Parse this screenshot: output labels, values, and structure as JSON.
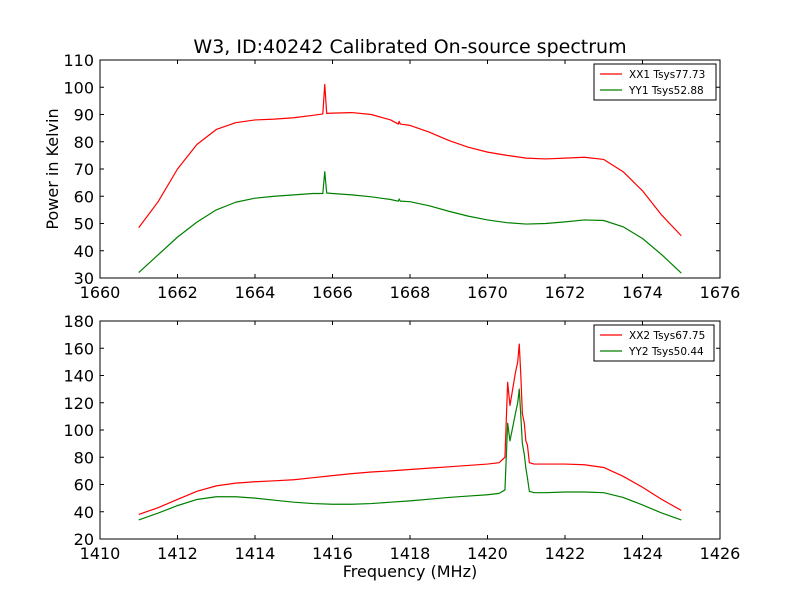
{
  "title": "W3, ID:40242 Calibrated On-source spectrum",
  "chart_data": [
    {
      "type": "line",
      "xlabel": "",
      "ylabel": "Power in Kelvin",
      "xlim": [
        1660,
        1676
      ],
      "ylim": [
        30,
        110
      ],
      "xticks": [
        1660,
        1662,
        1664,
        1666,
        1668,
        1670,
        1672,
        1674,
        1676
      ],
      "yticks": [
        30,
        40,
        50,
        60,
        70,
        80,
        90,
        100,
        110
      ],
      "legend_position": "top-right",
      "series": [
        {
          "name": "XX1 Tsys77.73",
          "color": "#ff0000",
          "points": [
            [
              1661.0,
              48.5
            ],
            [
              1661.5,
              58
            ],
            [
              1662.0,
              70
            ],
            [
              1662.5,
              79
            ],
            [
              1663.0,
              84.5
            ],
            [
              1663.5,
              87
            ],
            [
              1664.0,
              88
            ],
            [
              1664.5,
              88.3
            ],
            [
              1665.0,
              88.8
            ],
            [
              1665.5,
              89.7
            ],
            [
              1665.75,
              90.2
            ],
            [
              1665.8,
              101
            ],
            [
              1665.85,
              90.4
            ],
            [
              1666.0,
              90.5
            ],
            [
              1666.5,
              90.7
            ],
            [
              1667.0,
              90
            ],
            [
              1667.5,
              88
            ],
            [
              1667.7,
              86.5
            ],
            [
              1667.72,
              87.5
            ],
            [
              1667.75,
              86.5
            ],
            [
              1668.0,
              86
            ],
            [
              1668.5,
              83.5
            ],
            [
              1669.0,
              80.5
            ],
            [
              1669.5,
              78
            ],
            [
              1670.0,
              76.2
            ],
            [
              1670.5,
              75
            ],
            [
              1671.0,
              74
            ],
            [
              1671.5,
              73.7
            ],
            [
              1672.0,
              74
            ],
            [
              1672.5,
              74.3
            ],
            [
              1673.0,
              73.5
            ],
            [
              1673.5,
              69
            ],
            [
              1674.0,
              62
            ],
            [
              1674.5,
              53
            ],
            [
              1675.0,
              45.5
            ]
          ]
        },
        {
          "name": "YY1 Tsys52.88",
          "color": "#008000",
          "points": [
            [
              1661.0,
              32
            ],
            [
              1661.5,
              38.5
            ],
            [
              1662.0,
              45
            ],
            [
              1662.5,
              50.5
            ],
            [
              1663.0,
              55
            ],
            [
              1663.5,
              57.8
            ],
            [
              1664.0,
              59.3
            ],
            [
              1664.5,
              60
            ],
            [
              1665.0,
              60.5
            ],
            [
              1665.5,
              61
            ],
            [
              1665.75,
              61
            ],
            [
              1665.8,
              69
            ],
            [
              1665.85,
              61.2
            ],
            [
              1666.0,
              61
            ],
            [
              1666.5,
              60.5
            ],
            [
              1667.0,
              59.8
            ],
            [
              1667.5,
              58.8
            ],
            [
              1667.7,
              58.2
            ],
            [
              1667.72,
              59
            ],
            [
              1667.75,
              58.2
            ],
            [
              1668.0,
              58
            ],
            [
              1668.5,
              56.5
            ],
            [
              1669.0,
              54.5
            ],
            [
              1669.5,
              52.7
            ],
            [
              1670.0,
              51.3
            ],
            [
              1670.5,
              50.3
            ],
            [
              1671.0,
              49.8
            ],
            [
              1671.5,
              50
            ],
            [
              1672.0,
              50.6
            ],
            [
              1672.5,
              51.3
            ],
            [
              1673.0,
              51.1
            ],
            [
              1673.5,
              48.8
            ],
            [
              1674.0,
              44.5
            ],
            [
              1674.5,
              38.5
            ],
            [
              1675.0,
              31.8
            ]
          ]
        }
      ]
    },
    {
      "type": "line",
      "xlabel": "Frequency (MHz)",
      "ylabel": "",
      "xlim": [
        1410,
        1426
      ],
      "ylim": [
        20,
        180
      ],
      "xticks": [
        1410,
        1412,
        1414,
        1416,
        1418,
        1420,
        1422,
        1424,
        1426
      ],
      "yticks": [
        20,
        40,
        60,
        80,
        100,
        120,
        140,
        160,
        180
      ],
      "legend_position": "top-right",
      "series": [
        {
          "name": "XX2 Tsys67.75",
          "color": "#ff0000",
          "points": [
            [
              1411.0,
              38
            ],
            [
              1411.5,
              43
            ],
            [
              1412.0,
              49
            ],
            [
              1412.5,
              55
            ],
            [
              1413.0,
              59
            ],
            [
              1413.5,
              61
            ],
            [
              1414.0,
              62
            ],
            [
              1414.5,
              62.7
            ],
            [
              1415.0,
              63.5
            ],
            [
              1415.5,
              65
            ],
            [
              1416.0,
              66.5
            ],
            [
              1416.5,
              68
            ],
            [
              1417.0,
              69.2
            ],
            [
              1417.5,
              70
            ],
            [
              1418.0,
              71
            ],
            [
              1418.5,
              72
            ],
            [
              1419.0,
              73
            ],
            [
              1419.5,
              74
            ],
            [
              1420.0,
              75
            ],
            [
              1420.3,
              76
            ],
            [
              1420.45,
              80
            ],
            [
              1420.52,
              135
            ],
            [
              1420.58,
              118
            ],
            [
              1420.65,
              130
            ],
            [
              1420.72,
              142
            ],
            [
              1420.78,
              150
            ],
            [
              1420.82,
              163
            ],
            [
              1420.86,
              140
            ],
            [
              1420.9,
              112
            ],
            [
              1420.95,
              105
            ],
            [
              1420.99,
              92
            ],
            [
              1421.03,
              89
            ],
            [
              1421.08,
              76
            ],
            [
              1421.2,
              75
            ],
            [
              1421.5,
              75
            ],
            [
              1422.0,
              75
            ],
            [
              1422.5,
              74.5
            ],
            [
              1423.0,
              72.5
            ],
            [
              1423.5,
              66
            ],
            [
              1424.0,
              58
            ],
            [
              1424.5,
              49
            ],
            [
              1425.0,
              41
            ]
          ]
        },
        {
          "name": "YY2 Tsys50.44",
          "color": "#008000",
          "points": [
            [
              1411.0,
              34
            ],
            [
              1411.5,
              39
            ],
            [
              1412.0,
              44.5
            ],
            [
              1412.5,
              49
            ],
            [
              1413.0,
              51
            ],
            [
              1413.5,
              51
            ],
            [
              1414.0,
              50
            ],
            [
              1414.5,
              48.5
            ],
            [
              1415.0,
              47
            ],
            [
              1415.5,
              46
            ],
            [
              1416.0,
              45.5
            ],
            [
              1416.5,
              45.5
            ],
            [
              1417.0,
              46
            ],
            [
              1417.5,
              47
            ],
            [
              1418.0,
              48
            ],
            [
              1418.5,
              49.2
            ],
            [
              1419.0,
              50.5
            ],
            [
              1419.5,
              51.5
            ],
            [
              1420.0,
              52.5
            ],
            [
              1420.3,
              53.5
            ],
            [
              1420.45,
              56
            ],
            [
              1420.52,
              105
            ],
            [
              1420.58,
              92
            ],
            [
              1420.65,
              102
            ],
            [
              1420.72,
              112
            ],
            [
              1420.78,
              120
            ],
            [
              1420.82,
              130
            ],
            [
              1420.86,
              110
            ],
            [
              1420.9,
              90
            ],
            [
              1420.95,
              82
            ],
            [
              1420.99,
              72
            ],
            [
              1421.03,
              65
            ],
            [
              1421.08,
              55
            ],
            [
              1421.2,
              54
            ],
            [
              1421.5,
              54
            ],
            [
              1422.0,
              54.5
            ],
            [
              1422.5,
              54.5
            ],
            [
              1423.0,
              54
            ],
            [
              1423.5,
              50.5
            ],
            [
              1424.0,
              45
            ],
            [
              1424.5,
              39
            ],
            [
              1425.0,
              34
            ]
          ]
        }
      ]
    }
  ]
}
